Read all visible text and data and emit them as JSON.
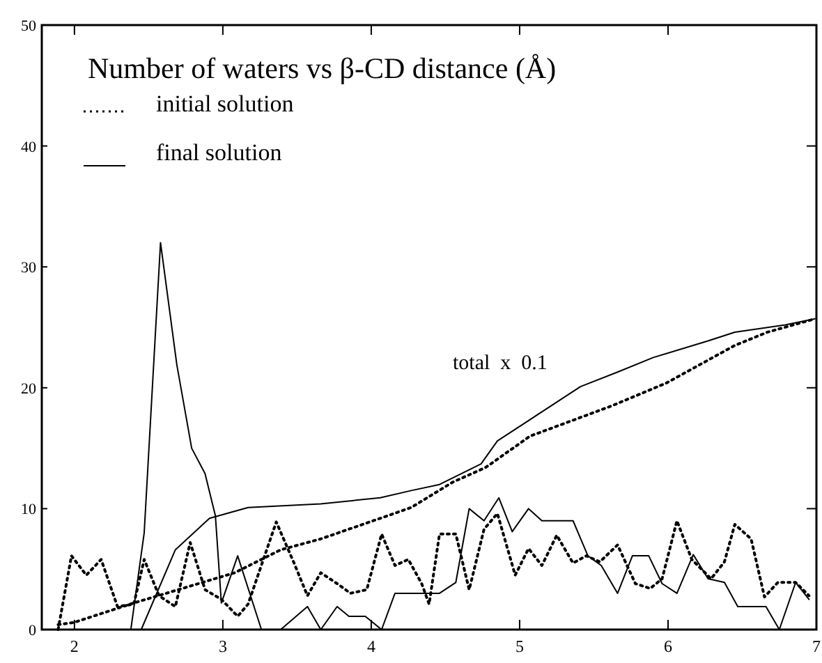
{
  "chart_data": {
    "type": "line",
    "title": "Number of waters vs β-CD distance (Å)",
    "xlim": [
      1.78,
      7
    ],
    "xticks": [
      2,
      3,
      4,
      5,
      6,
      7
    ],
    "ylim": [
      0,
      50
    ],
    "yticks": [
      0,
      10,
      20,
      30,
      40,
      50
    ],
    "grid": false,
    "legend": "top left",
    "marker": "none",
    "annotations": [
      "total  x  0.1"
    ],
    "series": [
      {
        "name": "initial solution",
        "color": "#000000",
        "line_style": "dotted",
        "x": [
          1.89,
          1.98,
          2.08,
          2.18,
          2.29,
          2.4,
          2.47,
          2.57,
          2.68,
          2.78,
          2.88,
          2.99,
          3.1,
          3.17,
          3.36,
          3.48,
          3.57,
          3.66,
          3.77,
          3.86,
          3.97,
          4.07,
          4.16,
          4.25,
          4.34,
          4.39,
          4.46,
          4.57,
          4.66,
          4.76,
          4.85,
          4.97,
          5.06,
          5.15,
          5.25,
          5.36,
          5.45,
          5.54,
          5.66,
          5.78,
          5.88,
          5.96,
          6.06,
          6.16,
          6.29,
          6.38,
          6.45,
          6.56,
          6.65,
          6.74,
          6.86,
          6.95
        ],
        "values": [
          0,
          6.1,
          4.5,
          5.8,
          1.9,
          2.1,
          5.8,
          2.8,
          1.9,
          7.2,
          3.3,
          2.5,
          1.1,
          2.1,
          8.9,
          5.5,
          2.8,
          4.7,
          3.8,
          3,
          3.3,
          7.9,
          5.3,
          5.8,
          3.8,
          2.1,
          7.9,
          7.9,
          3.3,
          8.3,
          9.6,
          4.5,
          6.7,
          5.3,
          7.8,
          5.5,
          6.1,
          5.6,
          7,
          3.8,
          3.4,
          4.2,
          9,
          5.8,
          4.2,
          5.6,
          8.7,
          7.5,
          2.7,
          3.9,
          3.9,
          2.8
        ]
      },
      {
        "name": "final solution",
        "color": "#000000",
        "line_style": "solid",
        "x": [
          2.38,
          2.47,
          2.58,
          2.69,
          2.79,
          2.88,
          2.95,
          2.99,
          3.1,
          3.26,
          3.39,
          3.57,
          3.66,
          3.77,
          3.85,
          3.96,
          4.07,
          4.16,
          4.46,
          4.57,
          4.66,
          4.76,
          4.86,
          4.95,
          5.06,
          5.15,
          5.36,
          5.46,
          5.55,
          5.66,
          5.76,
          5.87,
          5.96,
          6.06,
          6.17,
          6.27,
          6.38,
          6.47,
          6.66,
          6.75,
          6.86,
          6.95
        ],
        "values": [
          0,
          8,
          32,
          21.9,
          15,
          12.9,
          9.4,
          2.2,
          6.1,
          0,
          0,
          1.9,
          0,
          1.9,
          1.1,
          1.1,
          0,
          3,
          3,
          3.9,
          10,
          9,
          10.9,
          8.1,
          10,
          9,
          9,
          6.1,
          5.3,
          3,
          6.1,
          6.1,
          3.8,
          3,
          6.2,
          4.2,
          3.9,
          1.9,
          1.9,
          0,
          3.9,
          2.5
        ]
      },
      {
        "color": "#000000",
        "line_style": "dotted",
        "x": [
          1.89,
          2,
          2.4,
          3.08,
          3.39,
          3.66,
          4.06,
          4.27,
          4.55,
          4.77,
          5.07,
          5.62,
          5.99,
          6.45,
          6.67,
          6.99
        ],
        "values": [
          0.4,
          0.6,
          2.2,
          4.7,
          6.6,
          7.5,
          9.2,
          10.1,
          12.2,
          13.4,
          16,
          18.5,
          20.4,
          23.5,
          24.6,
          25.7
        ]
      },
      {
        "color": "#000000",
        "line_style": "solid",
        "x": [
          2.45,
          2.68,
          2.91,
          3.17,
          3.66,
          4.06,
          4.27,
          4.46,
          4.74,
          4.85,
          5.41,
          5.66,
          5.9,
          6.25,
          6.45,
          6.79,
          6.99
        ],
        "values": [
          0,
          6.6,
          9.2,
          10.1,
          10.4,
          10.9,
          11.5,
          12,
          13.7,
          15.6,
          20.1,
          21.3,
          22.5,
          23.8,
          24.6,
          25.2,
          25.7
        ]
      }
    ]
  }
}
